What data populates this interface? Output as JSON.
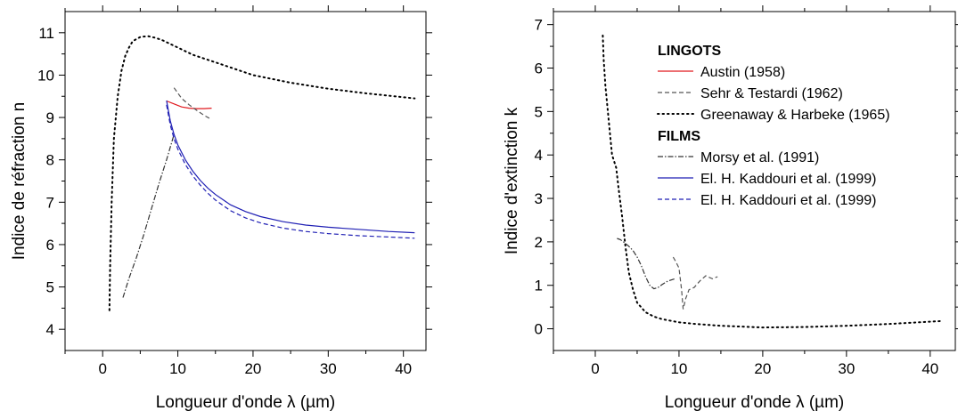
{
  "chart_data": [
    {
      "type": "line",
      "xlabel": "Longueur d'onde λ (µm)",
      "ylabel": "Indice de réfraction n",
      "xlim": [
        -5,
        43
      ],
      "ylim": [
        3.5,
        11.5
      ],
      "xticks": [
        0,
        10,
        20,
        30,
        40
      ],
      "yticks": [
        4,
        5,
        6,
        7,
        8,
        9,
        10,
        11
      ],
      "series": [
        {
          "name": "Austin (1958)",
          "color": "#e0191e",
          "style": "solid",
          "x": [
            8.5,
            9.5,
            10.5,
            11.5,
            12.5,
            13.5,
            14.5
          ],
          "y": [
            9.39,
            9.32,
            9.25,
            9.22,
            9.21,
            9.21,
            9.22
          ]
        },
        {
          "name": "Sehr & Testardi (1962)",
          "color": "#555555",
          "style": "dashed",
          "x": [
            9.5,
            10.5,
            11.5,
            12.5,
            13.5,
            14.5
          ],
          "y": [
            9.7,
            9.45,
            9.3,
            9.17,
            9.05,
            8.95
          ]
        },
        {
          "name": "Greenaway & Harbeke (1965)",
          "color": "#000000",
          "style": "dotted",
          "x": [
            0.9,
            1.0,
            1.2,
            1.5,
            2.0,
            2.5,
            3.0,
            3.5,
            4.0,
            5.0,
            6.0,
            7.0,
            8.0,
            10.0,
            12.0,
            15.0,
            20.0,
            25.0,
            30.0,
            35.0,
            41.5
          ],
          "y": [
            4.45,
            5.5,
            7.0,
            8.5,
            9.5,
            10.1,
            10.45,
            10.65,
            10.8,
            10.9,
            10.92,
            10.88,
            10.82,
            10.65,
            10.48,
            10.3,
            10.0,
            9.82,
            9.68,
            9.57,
            9.45
          ]
        },
        {
          "name": "Morsy et al. (1991)",
          "color": "#333333",
          "style": "dashdot",
          "x": [
            2.7,
            3.5,
            4.5,
            5.5,
            6.5,
            7.5,
            8.5,
            9.5
          ],
          "y": [
            4.75,
            5.2,
            5.7,
            6.25,
            6.85,
            7.45,
            8.0,
            8.6
          ]
        },
        {
          "name": "El. H. Kaddouri et al. (1999)",
          "color": "#1f1fb4",
          "style": "solid",
          "x": [
            8.5,
            9.0,
            9.5,
            10.0,
            11.0,
            12.0,
            13.0,
            14.0,
            15.0,
            17.0,
            19.0,
            21.0,
            24.0,
            27.0,
            30.0,
            34.0,
            38.0,
            41.5
          ],
          "y": [
            9.4,
            8.92,
            8.6,
            8.35,
            8.0,
            7.73,
            7.51,
            7.33,
            7.18,
            6.94,
            6.78,
            6.66,
            6.54,
            6.46,
            6.41,
            6.36,
            6.31,
            6.28
          ]
        },
        {
          "name": "El. H. Kaddouri et al. (1999)",
          "color": "#1f1fb4",
          "style": "dashed",
          "x": [
            8.5,
            9.0,
            9.5,
            10.0,
            11.0,
            12.0,
            13.0,
            14.0,
            15.0,
            17.0,
            19.0,
            21.0,
            24.0,
            27.0,
            30.0,
            34.0,
            38.0,
            41.5
          ],
          "y": [
            9.3,
            8.82,
            8.5,
            8.25,
            7.89,
            7.62,
            7.4,
            7.21,
            7.05,
            6.8,
            6.63,
            6.51,
            6.39,
            6.31,
            6.26,
            6.21,
            6.18,
            6.15
          ]
        }
      ]
    },
    {
      "type": "line",
      "xlabel": "Longueur d'onde λ (µm)",
      "ylabel": "Indice d'extinction k",
      "xlim": [
        -5,
        43
      ],
      "ylim": [
        -0.5,
        7.3
      ],
      "xticks": [
        0,
        10,
        20,
        30,
        40
      ],
      "yticks": [
        0,
        1,
        2,
        3,
        4,
        5,
        6,
        7
      ],
      "series": [
        {
          "name": "Sehr & Testardi (1962)",
          "color": "#555555",
          "style": "dashed",
          "x": [
            9.3,
            9.6,
            10.0,
            10.3,
            10.5,
            10.8,
            11.2,
            11.8,
            12.5,
            13.2,
            14.0,
            14.6
          ],
          "y": [
            1.65,
            1.55,
            1.4,
            0.9,
            0.45,
            0.7,
            0.9,
            0.95,
            1.1,
            1.22,
            1.15,
            1.2
          ]
        },
        {
          "name": "Greenaway & Harbeke (1965)",
          "color": "#000000",
          "style": "dotted",
          "x": [
            0.9,
            1.0,
            1.2,
            1.5,
            1.8,
            2.0,
            2.5,
            2.8,
            3.2,
            3.6,
            4.0,
            4.5,
            5.0,
            6.0,
            7.0,
            8.0,
            10.0,
            12.0,
            15.0,
            20.0,
            25.0,
            30.0,
            35.0,
            41.5
          ],
          "y": [
            6.75,
            6.2,
            5.6,
            5.0,
            4.4,
            4.0,
            3.7,
            3.2,
            2.6,
            1.9,
            1.3,
            0.9,
            0.6,
            0.38,
            0.28,
            0.22,
            0.15,
            0.11,
            0.07,
            0.03,
            0.04,
            0.07,
            0.11,
            0.18
          ]
        },
        {
          "name": "Morsy et al. (1991)",
          "color": "#333333",
          "style": "dashdot",
          "x": [
            2.6,
            3.0,
            3.5,
            4.0,
            4.5,
            5.0,
            5.5,
            6.0,
            6.5,
            7.0,
            7.5,
            8.0,
            8.5,
            9.0,
            9.5
          ],
          "y": [
            2.08,
            2.05,
            1.98,
            1.9,
            1.8,
            1.65,
            1.45,
            1.2,
            1.0,
            0.92,
            0.95,
            1.02,
            1.08,
            1.12,
            1.15
          ]
        }
      ],
      "legend": {
        "position": "top-right",
        "groups": [
          {
            "heading": "LINGOTS",
            "entries": [
              {
                "label": "Austin (1958)",
                "color": "#e0191e",
                "style": "solid"
              },
              {
                "label": "Sehr & Testardi (1962)",
                "color": "#555555",
                "style": "dashed"
              },
              {
                "label": "Greenaway & Harbeke (1965)",
                "color": "#000000",
                "style": "dotted"
              }
            ]
          },
          {
            "heading": "FILMS",
            "entries": [
              {
                "label": "Morsy et al. (1991)",
                "color": "#333333",
                "style": "dashdot"
              },
              {
                "label": "El. H. Kaddouri et al. (1999)",
                "color": "#1f1fb4",
                "style": "solid"
              },
              {
                "label": "El. H. Kaddouri et al. (1999)",
                "color": "#1f1fb4",
                "style": "dashed"
              }
            ]
          }
        ]
      }
    }
  ]
}
